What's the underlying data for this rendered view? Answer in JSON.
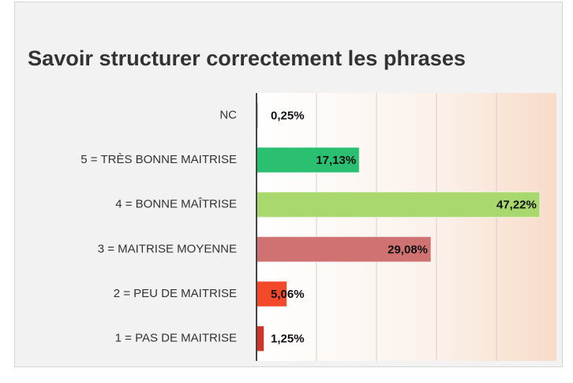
{
  "chart_data": {
    "type": "hbar",
    "title": "Savoir structurer correctement les phrases",
    "categories": [
      "NC",
      "5 = TRÈS BONNE MAITRISE",
      "4 = BONNE MAÎTRISE",
      "3 = MAITRISE MOYENNE",
      "2 = PEU DE MAITRISE",
      "1 = PAS DE MAITRISE"
    ],
    "values": [
      0.25,
      17.13,
      47.22,
      29.08,
      5.06,
      1.25
    ],
    "value_labels": [
      "0,25%",
      "17,13%",
      "47,22%",
      "29,08%",
      "5,06%",
      "1,25%"
    ],
    "colors": [
      "#9e9e9e",
      "#2bc071",
      "#a9d86e",
      "#d07272",
      "#f2492b",
      "#cc3528"
    ],
    "xlim": [
      0,
      50
    ],
    "xticks": [
      10,
      20,
      30,
      40
    ],
    "grid": true
  }
}
